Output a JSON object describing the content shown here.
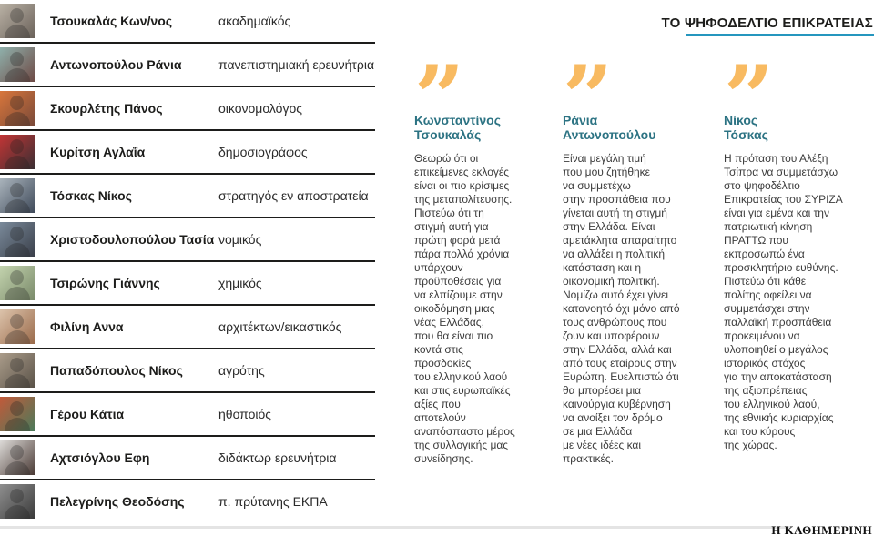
{
  "page": {
    "title": "ΤΟ ΨΗΦΟΔΕΛΤΙΟ ΕΠΙΚΡΑΤΕΙΑΣ",
    "brand": "Η ΚΑΘΗΜΕΡΙΝΗ",
    "accent_teal": "#2596be",
    "quote_orange": "#f8ba61",
    "quote_name_color": "#2c7383"
  },
  "ballot": {
    "rows": [
      {
        "name": "Τσουκαλάς Κων/νος",
        "profession": "ακαδημαϊκός",
        "photo_colors": [
          "#b9b1a5",
          "#6b625a"
        ]
      },
      {
        "name": "Αντωνοπούλου Ράνια",
        "profession": "πανεπιστημιακή ερευνήτρια",
        "photo_colors": [
          "#8fb0ab",
          "#6e4a45"
        ]
      },
      {
        "name": "Σκουρλέτης Πάνος",
        "profession": "οικονομολόγος",
        "photo_colors": [
          "#d8763b",
          "#7a4a3a"
        ]
      },
      {
        "name": "Κυρίτση Αγλαΐα",
        "profession": "δημοσιογράφος",
        "photo_colors": [
          "#c23535",
          "#3a2f33"
        ]
      },
      {
        "name": "Τόσκας Νίκος",
        "profession": "στρατηγός εν αποστρατεία",
        "photo_colors": [
          "#aab4bc",
          "#3f4a5a"
        ]
      },
      {
        "name": "Χριστοδουλοπούλου Τασία",
        "profession": "νομικός",
        "photo_colors": [
          "#7a8a9a",
          "#3a3f4a"
        ]
      },
      {
        "name": "Τσιρώνης Γιάννης",
        "profession": "χημικός",
        "photo_colors": [
          "#c3d3ae",
          "#7a8a6a"
        ]
      },
      {
        "name": "Φιλίνη Αννα",
        "profession": "αρχιτέκτων/εικαστικός",
        "photo_colors": [
          "#dcc3ab",
          "#9a6a4a"
        ]
      },
      {
        "name": "Παπαδόπουλος Νίκος",
        "profession": "αγρότης",
        "photo_colors": [
          "#aa9c8a",
          "#5a5248"
        ]
      },
      {
        "name": "Γέρου Κάτια",
        "profession": "ηθοποιός",
        "photo_colors": [
          "#c25a3a",
          "#4a7a5a"
        ]
      },
      {
        "name": "Αχτσιόγλου Εφη",
        "profession": "διδάκτωρ ερευνήτρια",
        "photo_colors": [
          "#dddbd8",
          "#4a3a35"
        ]
      },
      {
        "name": "Πελεγρίνης Θεοδόσης",
        "profession": "π. πρύτανης ΕΚΠΑ",
        "photo_colors": [
          "#8f8f8f",
          "#3a3a3a"
        ]
      }
    ]
  },
  "quotes": {
    "columns": [
      {
        "quote_glyph": "”",
        "name": "Κωνσταντίνος\nΤσουκαλάς",
        "text": "Θεωρώ ότι οι\nεπικείμενες εκλογές\nείναι οι πιο κρίσιμες\nτης μεταπολίτευσης.\nΠιστεύω ότι τη\nστιγμή αυτή για\nπρώτη φορά μετά\nπάρα πολλά χρόνια\nυπάρχουν\nπροϋποθέσεις για\nνα ελπίζουμε στην\nοικοδόμηση μιας\nνέας Ελλάδας,\nπου θα είναι πιο\nκοντά στις\nπροσδοκίες\nτου ελληνικού λαού\nκαι στις ευρωπαϊκές\nαξίες που\nαποτελούν\nαναπόσπαστο μέρος\nτης συλλογικής μας\nσυνείδησης."
      },
      {
        "quote_glyph": "”",
        "name": "Ράνια\nΑντωνοπούλου",
        "text": "Είναι μεγάλη τιμή\nπου μου ζητήθηκε\nνα συμμετέχω\nστην προσπάθεια που\nγίνεται αυτή τη στιγμή\nστην Ελλάδα. Είναι\nαμετάκλητα απαραίτητο\nνα αλλάξει η πολιτική\nκατάσταση και η\nοικονομική πολιτική.\nΝομίζω αυτό έχει γίνει\nκατανοητό όχι μόνο από\nτους ανθρώπους που\nζουν και υποφέρουν\nστην Ελλάδα, αλλά και\nαπό τους εταίρους στην\nΕυρώπη. Ευελπιστώ ότι\nθα μπορέσει μια\nκαινούργια κυβέρνηση\nνα ανοίξει τον δρόμο\nσε μια Ελλάδα\nμε νέες ιδέες και\nπρακτικές."
      },
      {
        "quote_glyph": "”",
        "name": "Νίκος\nΤόσκας",
        "text": "Η πρόταση του Αλέξη\nΤσίπρα να συμμετάσχω\nστο ψηφοδέλτιο\nΕπικρατείας του ΣΥΡΙΖΑ\nείναι για εμένα και την\nπατριωτική κίνηση\nΠΡΑΤΤΩ που\nεκπροσωπώ ένα\nπροσκλητήριο ευθύνης.\nΠιστεύω ότι κάθε\nπολίτης οφείλει να\nσυμμετάσχει στην\nπαλλαϊκή προσπάθεια\nπροκειμένου να\nυλοποιηθεί ο μεγάλος\nιστορικός στόχος\nγια την αποκατάσταση\nτης αξιοπρέπειας\nτου ελληνικού λαού,\nτης εθνικής κυριαρχίας\nκαι του κύρους\nτης χώρας."
      }
    ]
  }
}
